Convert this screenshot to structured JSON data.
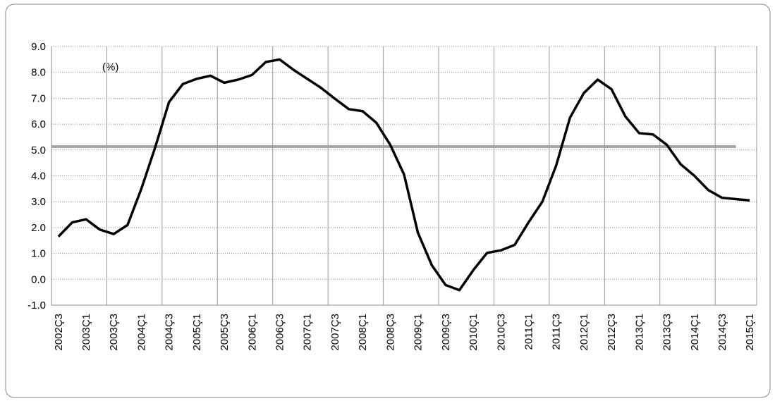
{
  "chart_data": {
    "type": "line",
    "annotation": "(%)",
    "categories": [
      "2002Ç3",
      null,
      "2003Ç1",
      null,
      "2003Ç3",
      null,
      "2004Ç1",
      null,
      "2004Ç3",
      null,
      "2005Ç1",
      null,
      "2005Ç3",
      null,
      "2006Ç1",
      null,
      "2006Ç3",
      null,
      "2007Ç1",
      null,
      "2007Ç3",
      null,
      "2008Ç1",
      null,
      "2008Ç3",
      null,
      "2009Ç1",
      null,
      "2009Ç3",
      null,
      "2010Ç1",
      null,
      "2010Ç3",
      null,
      "2011Ç1",
      null,
      "2011Ç3",
      null,
      "2012Ç1",
      null,
      "2012Ç3",
      null,
      "2013Ç1",
      null,
      "2013Ç3",
      null,
      "2014Ç1",
      null,
      "2014Ç3",
      null,
      "2015Ç1"
    ],
    "series": [
      {
        "color": "#000000",
        "values": [
          1.65,
          2.2,
          2.32,
          1.92,
          1.75,
          2.1,
          3.5,
          5.1,
          6.85,
          7.55,
          7.75,
          7.87,
          7.6,
          7.72,
          7.9,
          8.4,
          8.5,
          8.1,
          7.75,
          7.4,
          6.98,
          6.58,
          6.5,
          6.05,
          5.2,
          4.05,
          1.8,
          0.55,
          -0.22,
          -0.42,
          0.35,
          1.02,
          1.12,
          1.33,
          2.2,
          3.0,
          4.4,
          6.25,
          7.2,
          7.72,
          7.35,
          6.3,
          5.65,
          5.6,
          5.2,
          4.45,
          4.0,
          3.45,
          3.15,
          3.1,
          3.05
        ]
      }
    ],
    "reference_line": {
      "value": 5.13,
      "color": "#a6a6a6"
    },
    "ylim": [
      -1,
      9
    ],
    "yticks": [
      {
        "value": -1,
        "label": "-1.0"
      },
      {
        "value": 0,
        "label": "0.0"
      },
      {
        "value": 1,
        "label": "1.0"
      },
      {
        "value": 2,
        "label": "2.0"
      },
      {
        "value": 3,
        "label": "3.0"
      },
      {
        "value": 4,
        "label": "4.0"
      },
      {
        "value": 5,
        "label": "5.0"
      },
      {
        "value": 6,
        "label": "6.0"
      },
      {
        "value": 7,
        "label": "7.0"
      },
      {
        "value": 8,
        "label": "8.0"
      },
      {
        "value": 9,
        "label": "9.0"
      }
    ],
    "grid": true
  }
}
